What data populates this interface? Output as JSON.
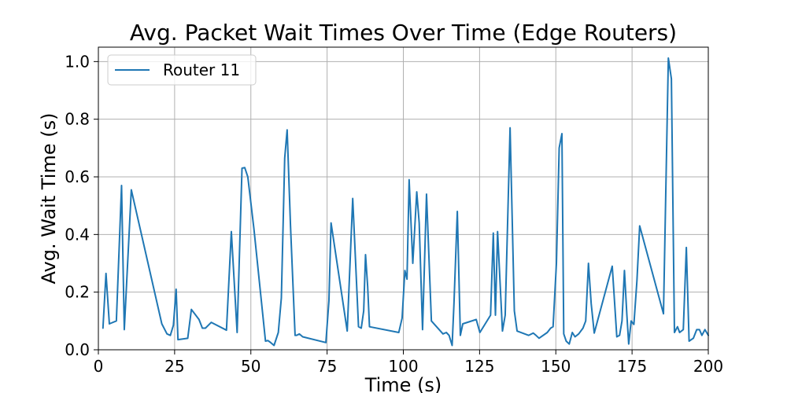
{
  "chart_data": {
    "type": "line",
    "title": "Avg. Packet Wait Times Over Time (Edge Routers)",
    "xlabel": "Time (s)",
    "ylabel": "Avg. Wait Time (s)",
    "xlim": [
      0,
      200
    ],
    "ylim": [
      0,
      1.05
    ],
    "xticks": [
      0,
      25,
      50,
      75,
      100,
      125,
      150,
      175,
      200
    ],
    "yticks": [
      0.0,
      0.2,
      0.4,
      0.6,
      0.8,
      1.0
    ],
    "xtick_labels": [
      "0",
      "25",
      "50",
      "75",
      "100",
      "125",
      "150",
      "175",
      "200"
    ],
    "ytick_labels": [
      "0.0",
      "0.2",
      "0.4",
      "0.6",
      "0.8",
      "1.0"
    ],
    "grid": true,
    "legend": {
      "placement": "top-left",
      "entries": [
        "Router 11"
      ]
    },
    "colors": {
      "series": "#1f77b4",
      "grid": "#b0b0b0",
      "axis": "#000000"
    },
    "series": [
      {
        "name": "Router 11",
        "x": [
          1.5,
          2.5,
          3.6,
          5.9,
          7.6,
          8.5,
          10.8,
          20.8,
          22.5,
          23.6,
          24.6,
          25.5,
          26.1,
          29.3,
          30.5,
          33.0,
          34.1,
          35.1,
          37.0,
          42.0,
          43.6,
          45.5,
          47.1,
          48.0,
          49.0,
          51.0,
          54.8,
          55.6,
          56.5,
          57.6,
          59.0,
          60.0,
          61.1,
          61.9,
          63.0,
          64.5,
          65.0,
          65.9,
          67.0,
          74.6,
          75.6,
          76.3,
          81.6,
          83.4,
          85.3,
          86.2,
          87.0,
          87.6,
          88.3,
          88.9,
          98.5,
          99.6,
          100.5,
          101.2,
          101.9,
          102.6,
          103.1,
          104.4,
          105.2,
          106.3,
          107.6,
          109.2,
          113.0,
          114.1,
          115.0,
          116.0,
          116.6,
          117.7,
          118.7,
          119.5,
          123.9,
          125.1,
          128.6,
          129.5,
          130.2,
          130.9,
          132.5,
          133.4,
          135.0,
          136.4,
          137.3,
          141.1,
          142.6,
          143.5,
          144.5,
          147.2,
          148.3,
          149.1,
          150.2,
          151.1,
          152.0,
          152.6,
          153.4,
          154.4,
          155.4,
          156.3,
          157.5,
          158.9,
          159.8,
          160.7,
          161.6,
          162.6,
          168.5,
          170.0,
          170.9,
          171.7,
          172.5,
          173.3,
          173.9,
          174.7,
          175.6,
          176.6,
          177.5,
          185.3,
          186.9,
          187.9,
          188.9,
          189.9,
          190.6,
          191.8,
          192.8,
          193.7,
          195.1,
          196.2,
          197.1,
          197.9,
          198.9,
          200.0
        ],
        "y": [
          0.075,
          0.265,
          0.09,
          0.1,
          0.57,
          0.07,
          0.555,
          0.09,
          0.055,
          0.05,
          0.085,
          0.21,
          0.035,
          0.04,
          0.14,
          0.105,
          0.075,
          0.075,
          0.095,
          0.068,
          0.41,
          0.06,
          0.63,
          0.632,
          0.6,
          0.42,
          0.03,
          0.032,
          0.025,
          0.015,
          0.06,
          0.18,
          0.665,
          0.763,
          0.43,
          0.05,
          0.05,
          0.055,
          0.045,
          0.025,
          0.17,
          0.44,
          0.065,
          0.525,
          0.08,
          0.075,
          0.135,
          0.33,
          0.22,
          0.08,
          0.06,
          0.11,
          0.275,
          0.245,
          0.59,
          0.42,
          0.3,
          0.548,
          0.44,
          0.07,
          0.54,
          0.1,
          0.055,
          0.06,
          0.05,
          0.015,
          0.16,
          0.48,
          0.05,
          0.09,
          0.105,
          0.06,
          0.12,
          0.405,
          0.12,
          0.41,
          0.065,
          0.12,
          0.77,
          0.135,
          0.065,
          0.05,
          0.058,
          0.05,
          0.04,
          0.06,
          0.075,
          0.08,
          0.3,
          0.7,
          0.75,
          0.055,
          0.03,
          0.02,
          0.06,
          0.045,
          0.055,
          0.075,
          0.1,
          0.3,
          0.16,
          0.058,
          0.29,
          0.045,
          0.05,
          0.1,
          0.275,
          0.12,
          0.02,
          0.1,
          0.088,
          0.24,
          0.43,
          0.125,
          1.012,
          0.94,
          0.06,
          0.08,
          0.06,
          0.07,
          0.355,
          0.03,
          0.04,
          0.07,
          0.07,
          0.05,
          0.07,
          0.05
        ]
      }
    ]
  }
}
